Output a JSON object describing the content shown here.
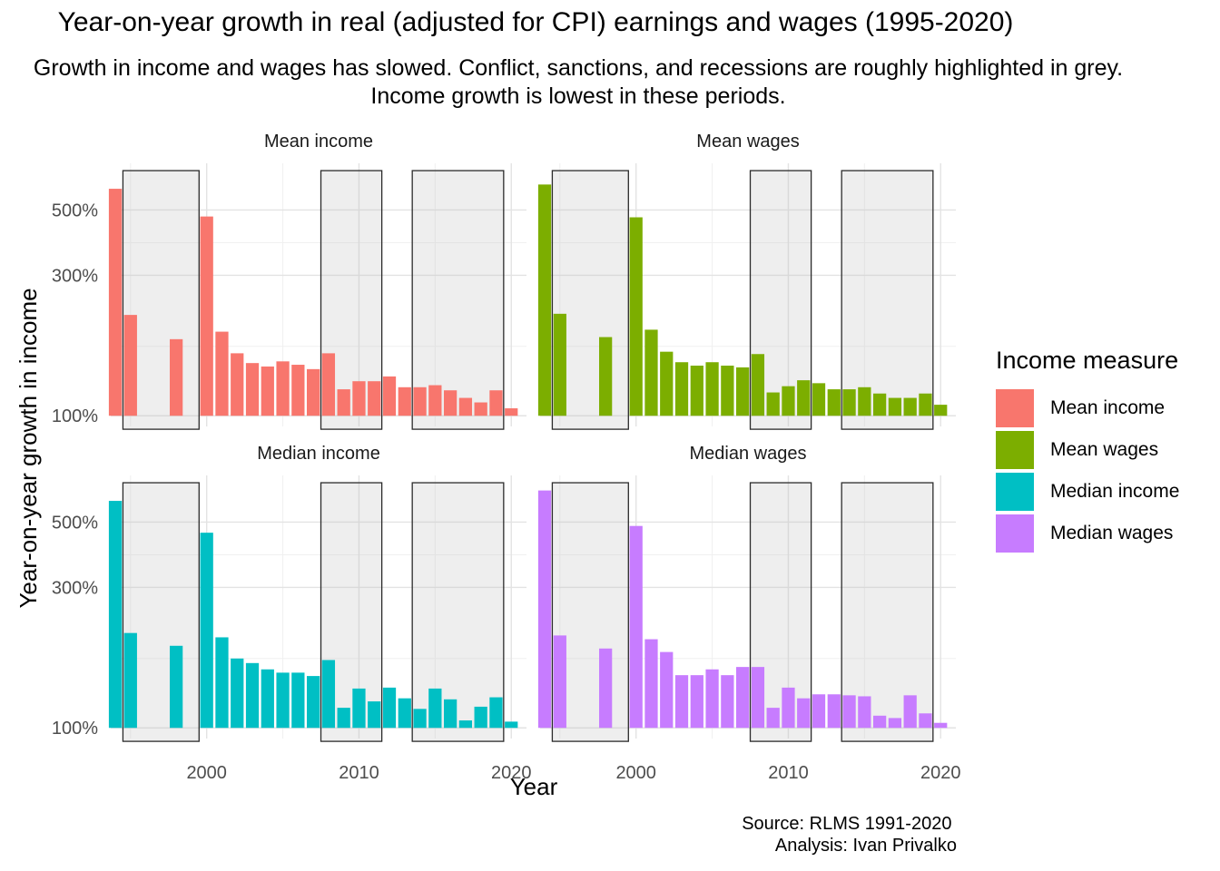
{
  "title": "Year-on-year growth in real (adjusted for CPI) earnings and wages (1995-2020)",
  "subtitle": "Growth in income and wages has slowed. Conflict, sanctions, and recessions are roughly highlighted in grey.\nIncome growth is lowest in these periods.",
  "caption": "Source: RLMS 1991-2020 \nAnalysis: Ivan Privalko",
  "chart_data": {
    "type": "bar",
    "xlabel": "Year",
    "ylabel": "Year-on-year growth in income",
    "x_ticks": [
      2000,
      2010,
      2020
    ],
    "y_ticks": [
      100,
      300,
      500
    ],
    "y_tick_labels": [
      "100%",
      "300%",
      "500%"
    ],
    "y_scale": "log",
    "grid": true,
    "highlight_periods": [
      [
        1994.5,
        1999.5
      ],
      [
        2007.5,
        2011.5
      ],
      [
        2013.5,
        2019.5
      ]
    ],
    "legend": {
      "title": "Income measure",
      "position": "right",
      "items": [
        {
          "label": "Mean income",
          "color": "#F8766D"
        },
        {
          "label": "Mean wages",
          "color": "#7CAE00"
        },
        {
          "label": "Median income",
          "color": "#00BFC4"
        },
        {
          "label": "Median wages",
          "color": "#C77CFF"
        }
      ]
    },
    "panels": [
      {
        "name": "Mean income",
        "color": "#F8766D",
        "points": [
          [
            1994,
            590
          ],
          [
            1995,
            220
          ],
          [
            1998,
            182
          ],
          [
            2000,
            475
          ],
          [
            2001,
            193
          ],
          [
            2002,
            163
          ],
          [
            2003,
            151
          ],
          [
            2004,
            147
          ],
          [
            2005,
            153
          ],
          [
            2006,
            149
          ],
          [
            2007,
            144
          ],
          [
            2008,
            163
          ],
          [
            2009,
            123
          ],
          [
            2010,
            131
          ],
          [
            2011,
            131
          ],
          [
            2012,
            136
          ],
          [
            2013,
            125
          ],
          [
            2014,
            125
          ],
          [
            2015,
            127
          ],
          [
            2016,
            122
          ],
          [
            2017,
            115
          ],
          [
            2018,
            111
          ],
          [
            2019,
            122
          ],
          [
            2020,
            106
          ]
        ]
      },
      {
        "name": "Mean wages",
        "color": "#7CAE00",
        "points": [
          [
            1994,
            610
          ],
          [
            1995,
            222
          ],
          [
            1998,
            185
          ],
          [
            2000,
            472
          ],
          [
            2001,
            196
          ],
          [
            2002,
            165
          ],
          [
            2003,
            152
          ],
          [
            2004,
            148
          ],
          [
            2005,
            152
          ],
          [
            2006,
            148
          ],
          [
            2007,
            146
          ],
          [
            2008,
            162
          ],
          [
            2009,
            120
          ],
          [
            2010,
            126
          ],
          [
            2011,
            132
          ],
          [
            2012,
            129
          ],
          [
            2013,
            123
          ],
          [
            2014,
            123
          ],
          [
            2015,
            125
          ],
          [
            2016,
            119
          ],
          [
            2017,
            115
          ],
          [
            2018,
            115
          ],
          [
            2019,
            119
          ],
          [
            2020,
            109
          ]
        ]
      },
      {
        "name": "Median income",
        "color": "#00BFC4",
        "points": [
          [
            1994,
            590
          ],
          [
            1995,
            210
          ],
          [
            1998,
            190
          ],
          [
            2000,
            460
          ],
          [
            2001,
            203
          ],
          [
            2002,
            172
          ],
          [
            2003,
            166
          ],
          [
            2004,
            158
          ],
          [
            2005,
            154
          ],
          [
            2006,
            154
          ],
          [
            2007,
            150
          ],
          [
            2008,
            170
          ],
          [
            2009,
            117
          ],
          [
            2010,
            136
          ],
          [
            2011,
            123
          ],
          [
            2012,
            137
          ],
          [
            2013,
            126
          ],
          [
            2014,
            116
          ],
          [
            2015,
            136
          ],
          [
            2016,
            125
          ],
          [
            2017,
            106
          ],
          [
            2018,
            118
          ],
          [
            2019,
            127
          ],
          [
            2020,
            105
          ]
        ]
      },
      {
        "name": "Median wages",
        "color": "#C77CFF",
        "points": [
          [
            1994,
            640
          ],
          [
            1995,
            206
          ],
          [
            1998,
            186
          ],
          [
            2000,
            485
          ],
          [
            2001,
            200
          ],
          [
            2002,
            181
          ],
          [
            2003,
            151
          ],
          [
            2004,
            151
          ],
          [
            2005,
            158
          ],
          [
            2006,
            151
          ],
          [
            2007,
            161
          ],
          [
            2008,
            161
          ],
          [
            2009,
            117
          ],
          [
            2010,
            137
          ],
          [
            2011,
            126
          ],
          [
            2012,
            130
          ],
          [
            2013,
            130
          ],
          [
            2014,
            129
          ],
          [
            2015,
            128
          ],
          [
            2016,
            110
          ],
          [
            2017,
            108
          ],
          [
            2018,
            129
          ],
          [
            2019,
            112
          ],
          [
            2020,
            104
          ]
        ]
      }
    ]
  }
}
